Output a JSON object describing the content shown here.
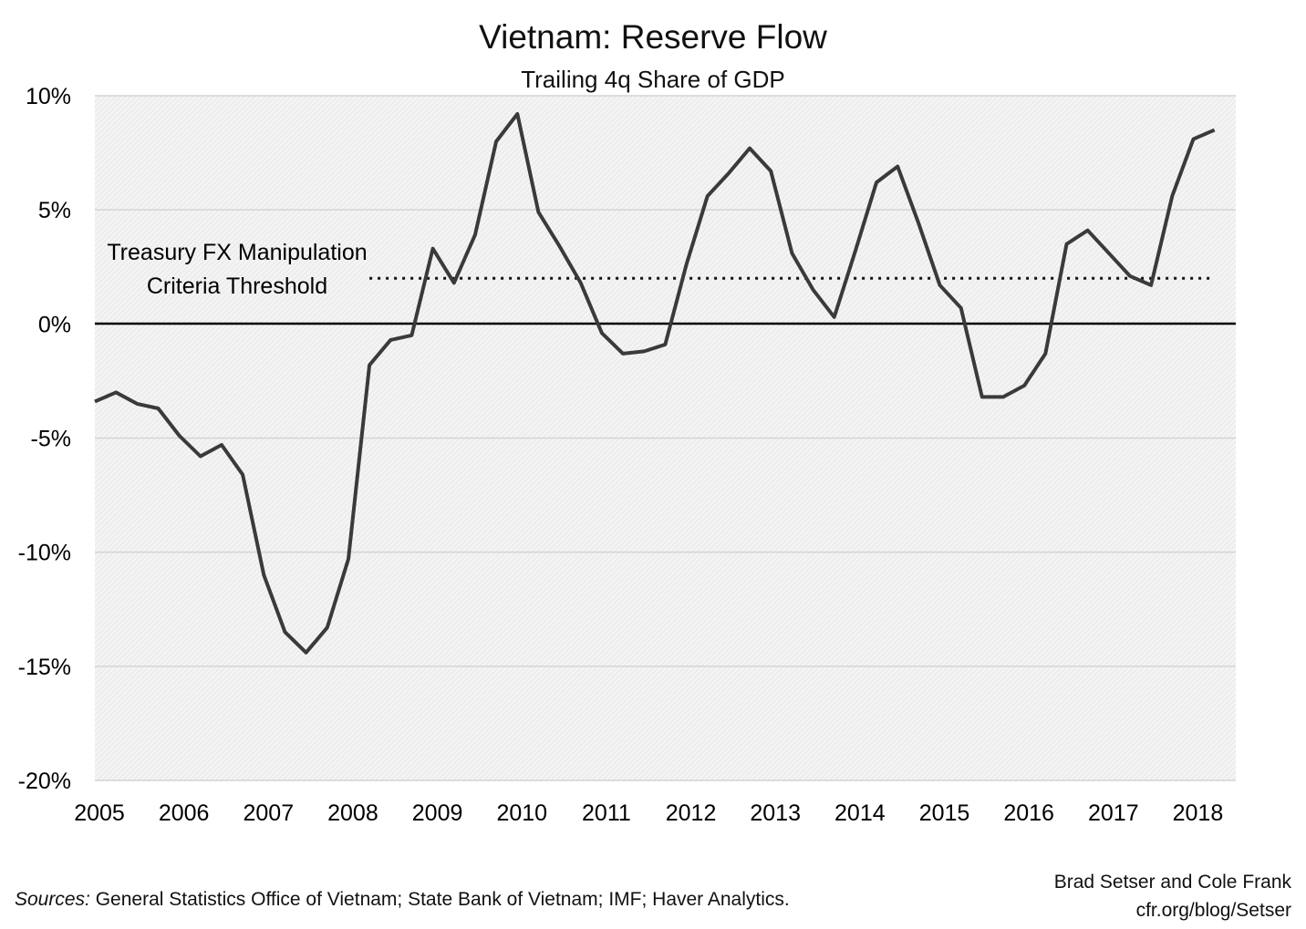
{
  "chart_data": {
    "type": "line",
    "title": "Vietnam: Reserve Flow",
    "subtitle": "Trailing 4q Share of GDP",
    "xlabel": "",
    "ylabel": "",
    "ylim": [
      -20,
      10
    ],
    "yticks": [
      "10%",
      "5%",
      "0%",
      "-5%",
      "-10%",
      "-15%",
      "-20%"
    ],
    "ytick_values": [
      10,
      5,
      0,
      -5,
      -10,
      -15,
      -20
    ],
    "xticks": [
      "2005",
      "2006",
      "2007",
      "2008",
      "2009",
      "2010",
      "2011",
      "2012",
      "2013",
      "2014",
      "2015",
      "2016",
      "2017",
      "2018"
    ],
    "grid": true,
    "x": [
      2005.0,
      2005.25,
      2005.5,
      2005.75,
      2006.0,
      2006.25,
      2006.5,
      2006.75,
      2007.0,
      2007.25,
      2007.5,
      2007.75,
      2008.0,
      2008.25,
      2008.5,
      2008.75,
      2009.0,
      2009.25,
      2009.5,
      2009.75,
      2010.0,
      2010.25,
      2010.5,
      2010.75,
      2011.0,
      2011.25,
      2011.5,
      2011.75,
      2012.0,
      2012.25,
      2012.5,
      2012.75,
      2013.0,
      2013.25,
      2013.5,
      2013.75,
      2014.0,
      2014.25,
      2014.5,
      2014.75,
      2015.0,
      2015.25,
      2015.5,
      2015.75,
      2016.0,
      2016.25,
      2016.5,
      2016.75,
      2017.0,
      2017.25,
      2017.5,
      2017.75,
      2018.0,
      2018.25
    ],
    "series": [
      {
        "values": [
          -3.4,
          -3.0,
          -3.5,
          -3.7,
          -4.9,
          -5.8,
          -5.3,
          -6.6,
          -11.0,
          -13.5,
          -14.4,
          -13.3,
          -10.3,
          -1.8,
          -0.7,
          -0.5,
          3.3,
          1.8,
          3.9,
          8.0,
          9.2,
          4.9,
          3.4,
          1.8,
          -0.4,
          -1.3,
          -1.2,
          -0.9,
          2.6,
          5.6,
          6.6,
          7.7,
          6.7,
          3.1,
          1.5,
          0.3,
          3.2,
          6.2,
          6.9,
          4.4,
          1.7,
          0.7,
          -3.2,
          -3.2,
          -2.7,
          -1.3,
          3.5,
          4.1,
          3.1,
          2.1,
          1.7,
          5.6,
          8.1,
          8.5
        ],
        "color": "#3a3a3a"
      }
    ],
    "threshold": {
      "value": 2,
      "label_line1": "Treasury FX Manipulation",
      "label_line2": "Criteria Threshold",
      "x_start": 2008.25
    }
  },
  "footer": {
    "source_prefix": "Sources:",
    "source_text": " General Statistics Office of Vietnam; State Bank of Vietnam; IMF; Haver Analytics.",
    "credit_line1": "Brad Setser and Cole Frank",
    "credit_line2": "cfr.org/blog/Setser"
  }
}
